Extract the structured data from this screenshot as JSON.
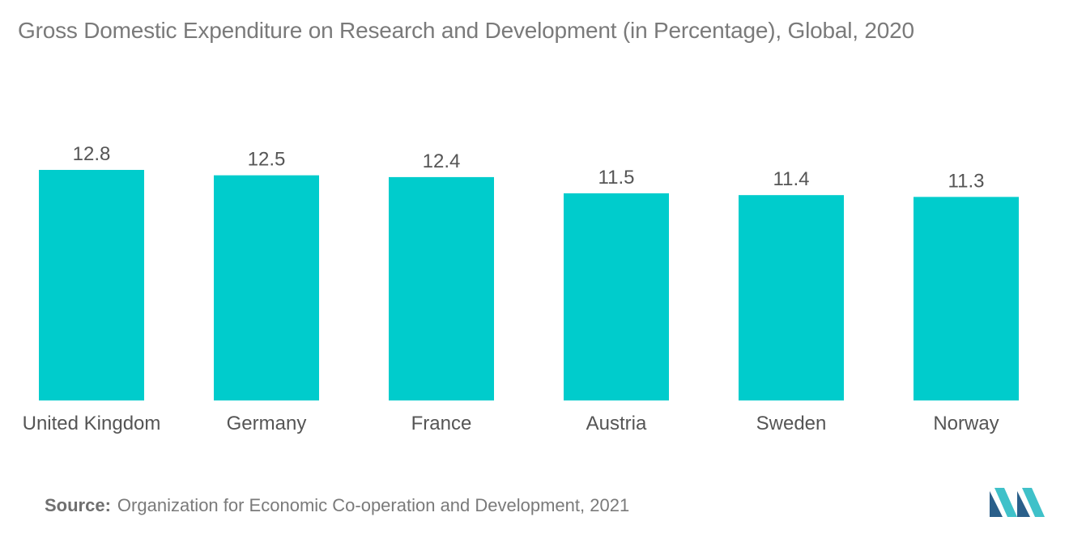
{
  "title": "Gross Domestic Expenditure on Research and Development (in Percentage), Global, 2020",
  "source": {
    "label": "Source:",
    "text": "Organization for Economic Co-operation and Development, 2021"
  },
  "colors": {
    "bar": "#00cccc",
    "text": "#7a7a7a",
    "label": "#555555",
    "logo_dark": "#2a5f8a",
    "logo_light": "#3fc1c9"
  },
  "logo": {
    "icon": "brand-logo-icon"
  },
  "chart_data": {
    "type": "bar",
    "title": "Gross Domestic Expenditure on Research and Development (in Percentage), Global, 2020",
    "categories": [
      "United Kingdom",
      "Germany",
      "France",
      "Austria",
      "Sweden",
      "Norway"
    ],
    "values": [
      12.8,
      12.5,
      12.4,
      11.5,
      11.4,
      11.3
    ],
    "value_labels": [
      "12.8",
      "12.5",
      "12.4",
      "11.5",
      "11.4",
      "11.3"
    ],
    "xlabel": "",
    "ylabel": "",
    "ylim": [
      0,
      12.8
    ],
    "grid": false,
    "legend": "none"
  }
}
